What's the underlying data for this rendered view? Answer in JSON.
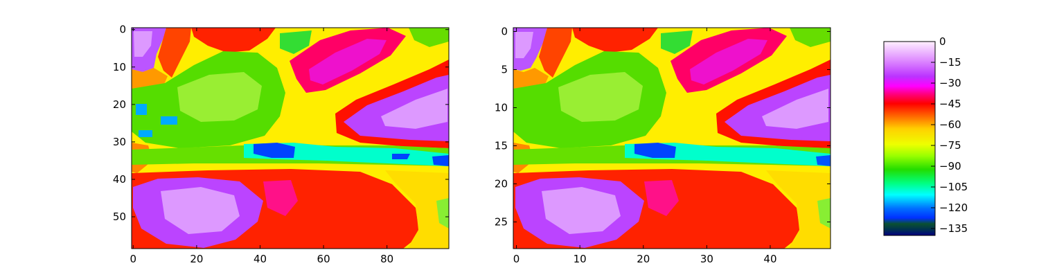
{
  "chart_data": [
    {
      "type": "heatmap",
      "title": "",
      "xlabel": "",
      "ylabel": "",
      "rows": 59,
      "cols": 100,
      "xlim": [
        0,
        99
      ],
      "ylim": [
        58,
        0
      ],
      "x_ticks": [
        0,
        20,
        40,
        60,
        80
      ],
      "y_ticks": [
        0,
        10,
        20,
        30,
        40,
        50
      ],
      "y_inverted": true,
      "interpolation": "nearest",
      "regions": [
        {
          "name": "violet-top-left",
          "x": 5,
          "y": 5,
          "value": -22
        },
        {
          "name": "violet-right",
          "x": 88,
          "y": 24,
          "value": -20
        },
        {
          "name": "violet-bottom",
          "x": 27,
          "y": 48,
          "value": -18
        },
        {
          "name": "magenta-band-top",
          "x": 62,
          "y": 10,
          "value": -34
        },
        {
          "name": "green-center",
          "x": 30,
          "y": 22,
          "value": -85
        },
        {
          "name": "blue-horizontal-streak",
          "x": 45,
          "y": 32,
          "value": -125
        },
        {
          "name": "yellow-background",
          "x": 15,
          "y": 38,
          "value": -62
        }
      ]
    },
    {
      "type": "heatmap",
      "title": "",
      "xlabel": "",
      "ylabel": "",
      "rows": 29,
      "cols": 50,
      "xlim": [
        0,
        49
      ],
      "ylim": [
        28,
        0
      ],
      "x_ticks": [
        0,
        10,
        20,
        30,
        40
      ],
      "y_ticks": [
        0,
        5,
        10,
        15,
        20,
        25
      ],
      "y_inverted": true,
      "interpolation": "smooth",
      "regions": [
        {
          "name": "violet-top-left",
          "x": 2,
          "y": 2,
          "value": -22
        },
        {
          "name": "violet-right",
          "x": 44,
          "y": 12,
          "value": -20
        },
        {
          "name": "violet-bottom",
          "x": 13,
          "y": 24,
          "value": -18
        },
        {
          "name": "magenta-band-top",
          "x": 31,
          "y": 5,
          "value": -34
        },
        {
          "name": "green-center",
          "x": 15,
          "y": 11,
          "value": -85
        },
        {
          "name": "blue-horizontal-streak",
          "x": 22,
          "y": 16,
          "value": -125
        },
        {
          "name": "yellow-background",
          "x": 7,
          "y": 19,
          "value": -62
        }
      ]
    }
  ],
  "colorbar": {
    "colormap": "gist_ncar",
    "vmin": -140,
    "vmax": 0,
    "tick_values": [
      0,
      -15,
      -30,
      -45,
      -60,
      -75,
      -90,
      -105,
      -120,
      -135
    ],
    "tick_labels": [
      "0",
      "−15",
      "−30",
      "−45",
      "−60",
      "−75",
      "−90",
      "−105",
      "−120",
      "−135"
    ]
  }
}
